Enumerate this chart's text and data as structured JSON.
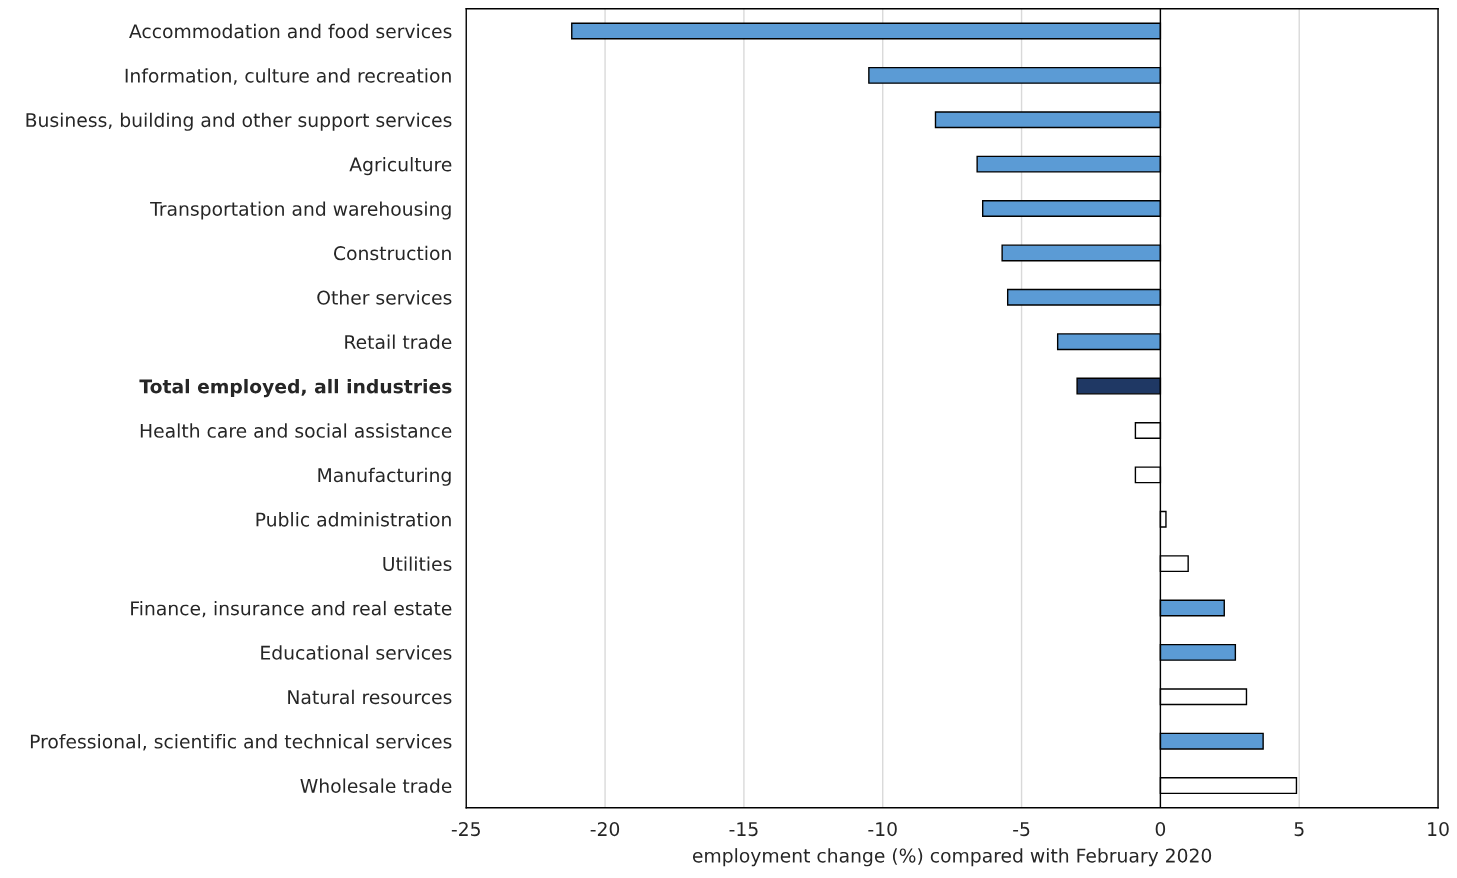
{
  "chart_data": {
    "type": "bar",
    "orientation": "horizontal",
    "xlabel": "employment change (%) compared with February 2020",
    "categories": [
      "Accommodation and food services",
      "Information, culture and recreation",
      "Business, building and other support services",
      "Agriculture",
      "Transportation and warehousing",
      "Construction",
      "Other services",
      "Retail trade",
      "Total employed, all industries",
      "Health care and social assistance",
      "Manufacturing",
      "Public administration",
      "Utilities",
      "Finance, insurance and real estate",
      "Educational services",
      "Natural resources",
      "Professional, scientific and technical services",
      "Wholesale trade"
    ],
    "values": [
      -21.2,
      -10.5,
      -8.1,
      -6.6,
      -6.4,
      -5.7,
      -5.5,
      -3.7,
      -3.0,
      -0.9,
      -0.9,
      0.2,
      1.0,
      2.3,
      2.7,
      3.1,
      3.7,
      4.9
    ],
    "colors": [
      "#5b9bd5",
      "#5b9bd5",
      "#5b9bd5",
      "#5b9bd5",
      "#5b9bd5",
      "#5b9bd5",
      "#5b9bd5",
      "#5b9bd5",
      "#1f3864",
      "#ffffff",
      "#ffffff",
      "#ffffff",
      "#ffffff",
      "#5b9bd5",
      "#5b9bd5",
      "#ffffff",
      "#5b9bd5",
      "#ffffff"
    ],
    "xlim": [
      -25,
      10
    ],
    "xticks": [
      -25,
      -20,
      -15,
      -10,
      -5,
      0,
      5,
      10
    ],
    "grid": "x",
    "legend": false
  }
}
